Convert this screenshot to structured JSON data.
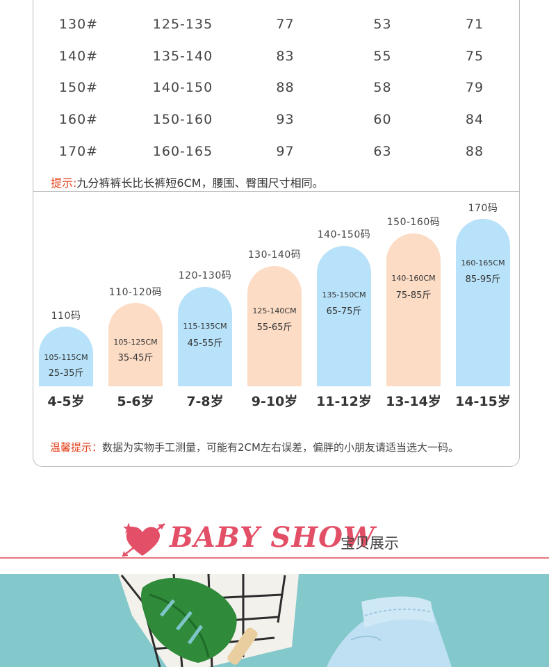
{
  "size_table": {
    "rows": [
      [
        "130#",
        "125-135",
        "77",
        "53",
        "71"
      ],
      [
        "140#",
        "135-140",
        "83",
        "55",
        "75"
      ],
      [
        "150#",
        "140-150",
        "88",
        "58",
        "79"
      ],
      [
        "160#",
        "150-160",
        "93",
        "60",
        "84"
      ],
      [
        "170#",
        "160-165",
        "97",
        "63",
        "88"
      ]
    ],
    "tip_label": "提示:",
    "tip_text": "九分裤裤长比长裤短6CM，腰围、臀围尺寸相同。"
  },
  "age_chart": {
    "items": [
      {
        "size": "110码",
        "height": "105-115CM",
        "weight": "25-35斤",
        "age": "4-5岁",
        "color": "#b7e2fa"
      },
      {
        "size": "110-120码",
        "height": "105-125CM",
        "weight": "35-45斤",
        "age": "5-6岁",
        "color": "#fcdcc5"
      },
      {
        "size": "120-130码",
        "height": "115-135CM",
        "weight": "45-55斤",
        "age": "7-8岁",
        "color": "#b7e2fa"
      },
      {
        "size": "130-140码",
        "height": "125-140CM",
        "weight": "55-65斤",
        "age": "9-10岁",
        "color": "#fcdcc5"
      },
      {
        "size": "140-150码",
        "height": "135-150CM",
        "weight": "65-75斤",
        "age": "11-12岁",
        "color": "#b7e2fa"
      },
      {
        "size": "150-160码",
        "height": "140-160CM",
        "weight": "75-85斤",
        "age": "13-14岁",
        "color": "#fcdcc5"
      },
      {
        "size": "170码",
        "height": "160-165CM",
        "weight": "85-95斤",
        "age": "14-15岁",
        "color": "#b7e2fa"
      }
    ],
    "warm_label": "温馨提示：",
    "warm_text": "数据为实物手工测量，可能有2CM左右误差，偏胖的小朋友请适当选大一码。"
  },
  "show_header": {
    "title": "BABY SHOW",
    "subtitle": "宝贝展示",
    "accent_color": "#e24f66",
    "icon": "heart-arrow-icon"
  }
}
